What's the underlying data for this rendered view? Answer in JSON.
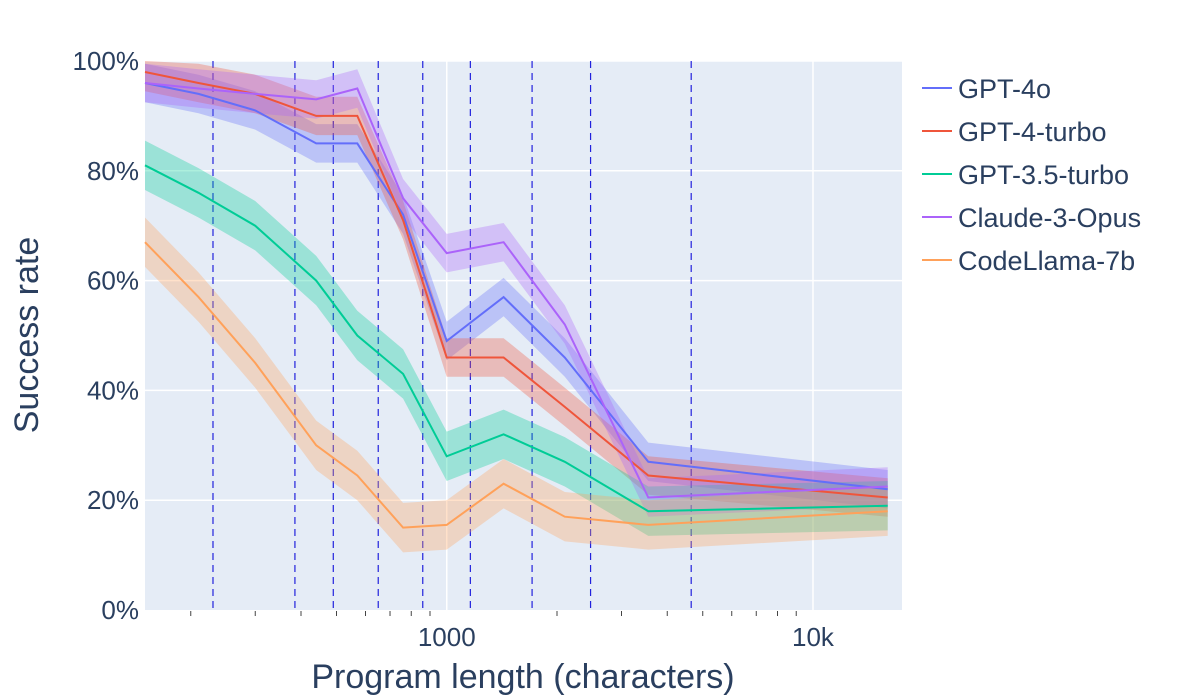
{
  "chart_data": {
    "type": "line",
    "xlabel": "Program length (characters)",
    "ylabel": "Success rate",
    "x_scale": "log",
    "xlim": [
      150,
      17500
    ],
    "ylim": [
      0,
      1
    ],
    "x_ticks": [
      {
        "value": 1000,
        "label": "1000"
      },
      {
        "value": 10000,
        "label": "10k"
      }
    ],
    "y_ticks": [
      {
        "value": 0,
        "label": "0%"
      },
      {
        "value": 0.2,
        "label": "20%"
      },
      {
        "value": 0.4,
        "label": "40%"
      },
      {
        "value": 0.6,
        "label": "60%"
      },
      {
        "value": 0.8,
        "label": "80%"
      },
      {
        "value": 1.0,
        "label": "100%"
      }
    ],
    "grid": true,
    "legend_position": "right",
    "vlines": [
      230,
      385,
      490,
      650,
      860,
      1160,
      1710,
      2470,
      4650
    ],
    "x": [
      150,
      210,
      300,
      440,
      570,
      760,
      1000,
      1430,
      2100,
      3550,
      16000
    ],
    "series": [
      {
        "name": "GPT-4o",
        "color": "#636efa",
        "values": [
          0.96,
          0.94,
          0.91,
          0.85,
          0.85,
          0.72,
          0.49,
          0.57,
          0.46,
          0.27,
          0.22
        ],
        "band": 0.035
      },
      {
        "name": "GPT-4-turbo",
        "color": "#ef553b",
        "values": [
          0.98,
          0.96,
          0.94,
          0.9,
          0.9,
          0.71,
          0.46,
          0.46,
          0.37,
          0.245,
          0.205
        ],
        "band": 0.035
      },
      {
        "name": "GPT-3.5-turbo",
        "color": "#00cc96",
        "values": [
          0.81,
          0.76,
          0.7,
          0.6,
          0.5,
          0.43,
          0.28,
          0.32,
          0.27,
          0.18,
          0.19
        ],
        "band": 0.045
      },
      {
        "name": "Claude-3-Opus",
        "color": "#ab63fa",
        "values": [
          0.96,
          0.95,
          0.94,
          0.93,
          0.95,
          0.75,
          0.65,
          0.67,
          0.52,
          0.205,
          0.225
        ],
        "band": 0.035
      },
      {
        "name": "CodeLlama-7b",
        "color": "#ffa15a",
        "values": [
          0.67,
          0.57,
          0.45,
          0.3,
          0.245,
          0.15,
          0.155,
          0.23,
          0.17,
          0.155,
          0.18
        ],
        "band": 0.045
      }
    ]
  }
}
